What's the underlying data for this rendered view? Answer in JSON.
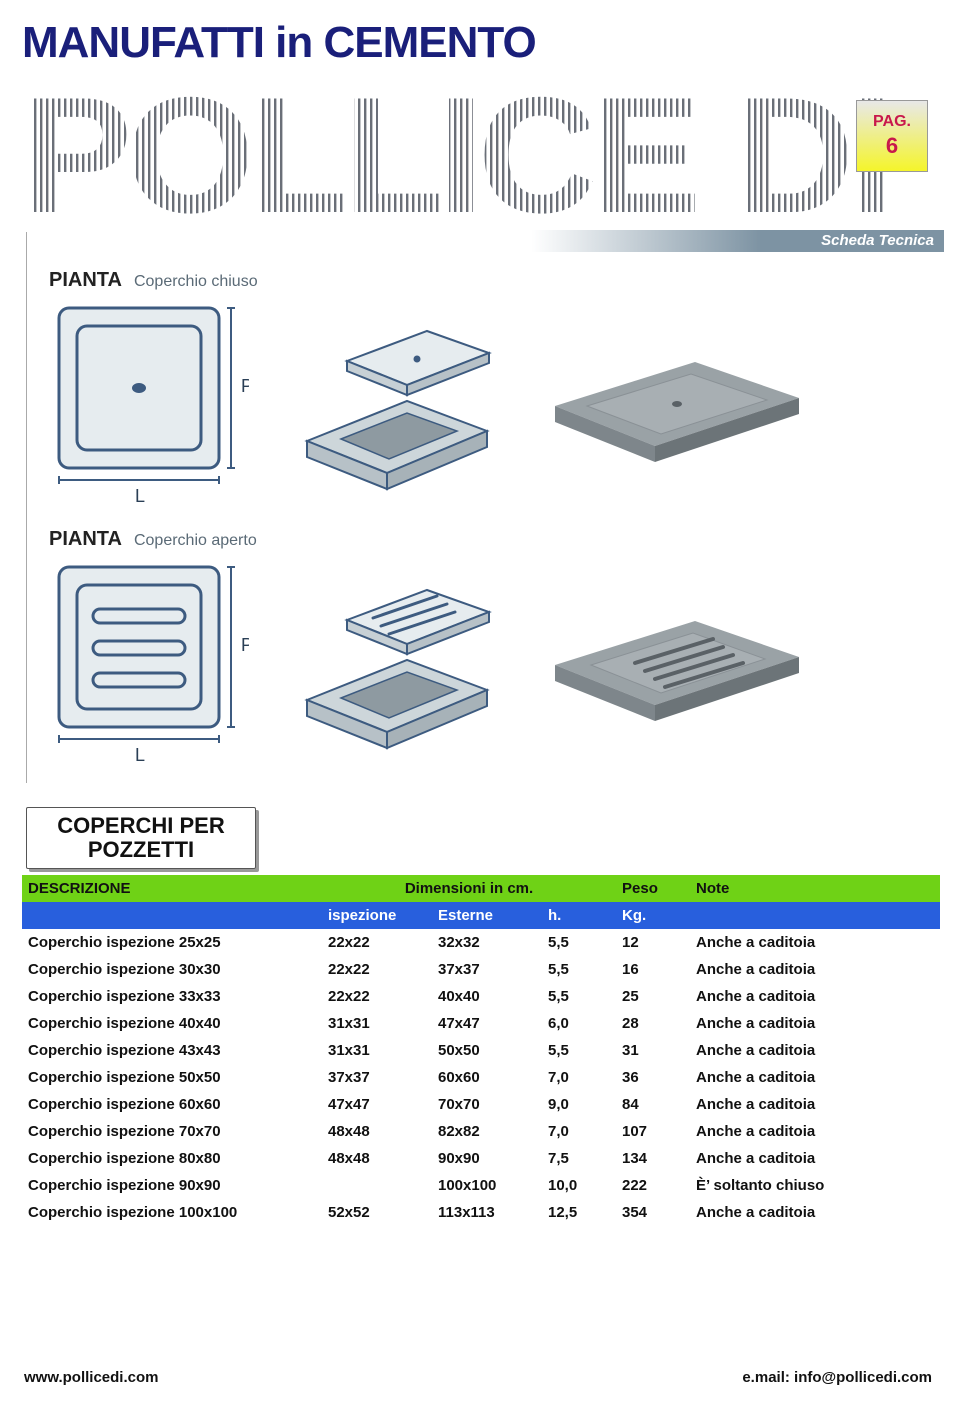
{
  "header": {
    "title_line1": "MANUFATTI in CEMENTO",
    "title_hatched": "POLLICE DI",
    "hatched_stroke_color": "#6a6f78",
    "title_color": "#1a1f7a"
  },
  "page_badge": {
    "label": "PAG.",
    "number": "6",
    "text_color": "#c8184c"
  },
  "scheda": {
    "band_text": "Scheda Tecnica",
    "pianta_label": "PIANTA",
    "closed_label": "Coperchio chiuso",
    "open_label": "Coperchio aperto",
    "dim_p": "P",
    "dim_l": "L",
    "muted_color": "#5a6a76"
  },
  "section": {
    "title_line1": "COPERCHI PER",
    "title_line2": "POZZETTI"
  },
  "table": {
    "header1": {
      "descrizione": "DESCRIZIONE",
      "dimensioni": "Dimensioni  in cm.",
      "peso": "Peso",
      "note": "Note",
      "bg": "#6fd216"
    },
    "header2": {
      "ispezione": "ispezione",
      "esterne": "Esterne",
      "h": "h.",
      "kg": "Kg.",
      "bg": "#285fdd"
    },
    "rows": [
      {
        "desc": "Coperchio ispezione 25x25",
        "isp": "22x22",
        "ext": "32x32",
        "h": "5,5",
        "kg": "12",
        "note": "Anche a caditoia"
      },
      {
        "desc": "Coperchio ispezione 30x30",
        "isp": "22x22",
        "ext": "37x37",
        "h": "5,5",
        "kg": "16",
        "note": "Anche a caditoia"
      },
      {
        "desc": "Coperchio ispezione 33x33",
        "isp": "22x22",
        "ext": "40x40",
        "h": "5,5",
        "kg": "25",
        "note": "Anche a caditoia"
      },
      {
        "desc": "Coperchio ispezione 40x40",
        "isp": "31x31",
        "ext": "47x47",
        "h": "6,0",
        "kg": "28",
        "note": "Anche a caditoia"
      },
      {
        "desc": "Coperchio ispezione 43x43",
        "isp": "31x31",
        "ext": "50x50",
        "h": "5,5",
        "kg": "31",
        "note": "Anche a caditoia"
      },
      {
        "desc": "Coperchio ispezione 50x50",
        "isp": "37x37",
        "ext": "60x60",
        "h": "7,0",
        "kg": "36",
        "note": "Anche a caditoia"
      },
      {
        "desc": "Coperchio ispezione 60x60",
        "isp": "47x47",
        "ext": "70x70",
        "h": "9,0",
        "kg": "84",
        "note": "Anche a caditoia"
      },
      {
        "desc": "Coperchio ispezione 70x70",
        "isp": "48x48",
        "ext": "82x82",
        "h": "7,0",
        "kg": "107",
        "note": "Anche a caditoia"
      },
      {
        "desc": "Coperchio ispezione 80x80",
        "isp": "48x48",
        "ext": "90x90",
        "h": "7,5",
        "kg": "134",
        "note": "Anche a caditoia"
      },
      {
        "desc": "Coperchio ispezione 90x90",
        "isp": "",
        "ext": "100x100",
        "h": "10,0",
        "kg": "222",
        "note": "È’ soltanto chiuso"
      },
      {
        "desc": "Coperchio ispezione 100x100",
        "isp": "52x52",
        "ext": "113x113",
        "h": "12,5",
        "kg": "354",
        "note": "Anche a caditoia"
      }
    ]
  },
  "footer": {
    "left": "www.pollicedi.com",
    "right": "e.mail: info@pollicedi.com"
  },
  "diagram_colors": {
    "outline": "#3d5b80",
    "outline_soft": "#8ea3b8",
    "fill_light": "#e6ecef",
    "fill_mid": "#cdd6da",
    "grey_obj": "#9aa2a6",
    "grey_dark": "#6c7478"
  }
}
